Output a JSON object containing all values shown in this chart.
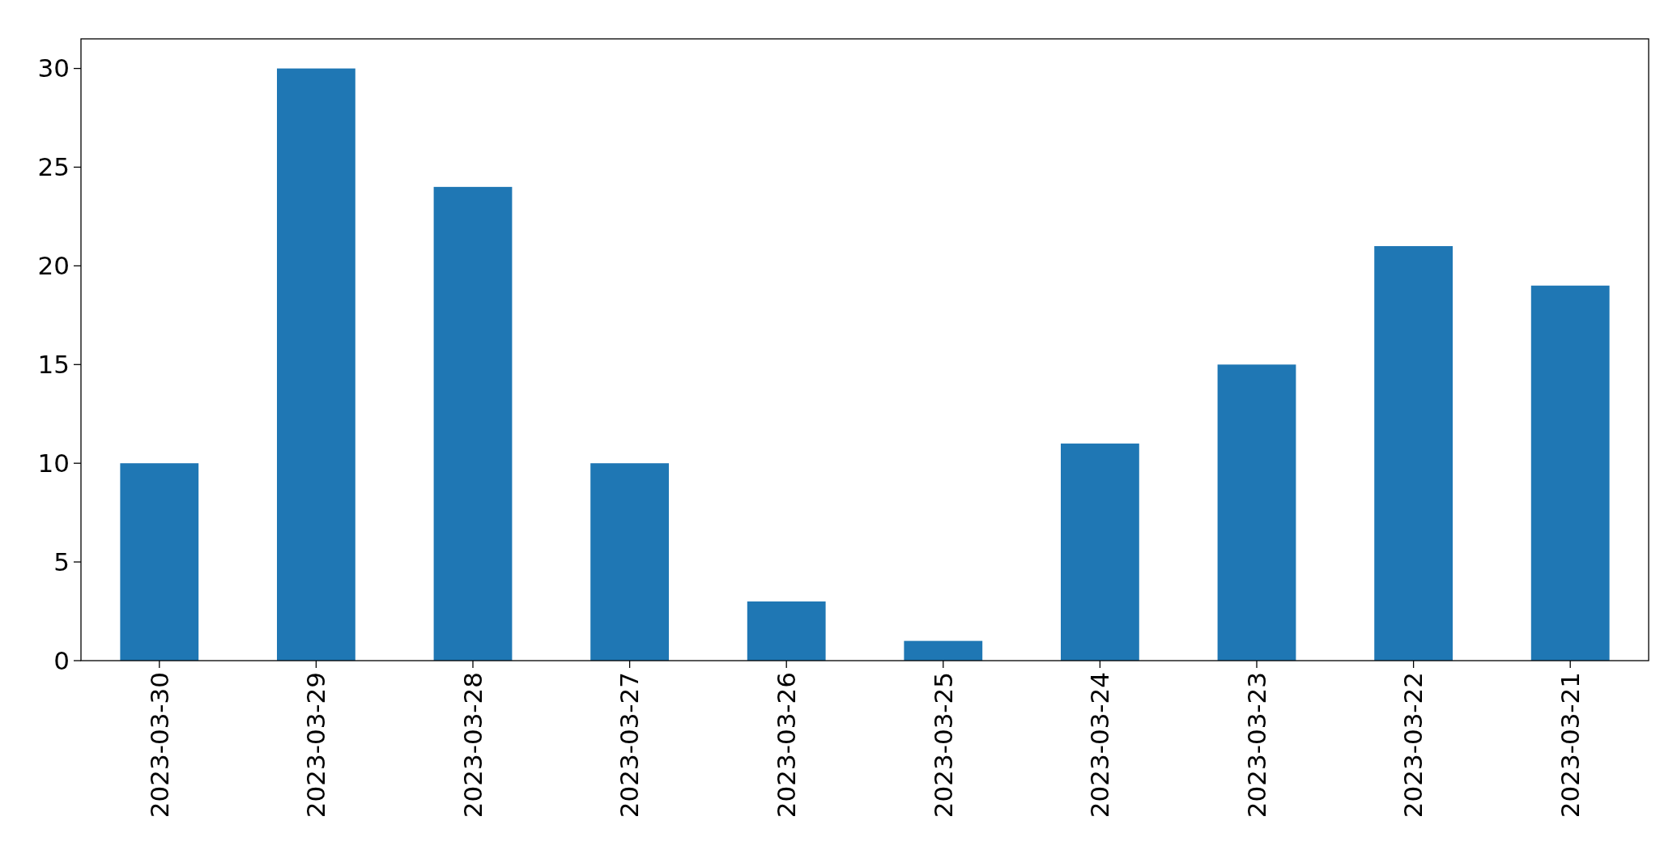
{
  "chart_data": {
    "type": "bar",
    "categories": [
      "2023-03-30",
      "2023-03-29",
      "2023-03-28",
      "2023-03-27",
      "2023-03-26",
      "2023-03-25",
      "2023-03-24",
      "2023-03-23",
      "2023-03-22",
      "2023-03-21"
    ],
    "values": [
      10,
      30,
      24,
      10,
      3,
      1,
      11,
      15,
      21,
      19
    ],
    "color": "#1f77b4",
    "ylim": [
      0,
      31.5
    ],
    "yticks": [
      0,
      5,
      10,
      15,
      20,
      25,
      30
    ],
    "grid": false
  }
}
